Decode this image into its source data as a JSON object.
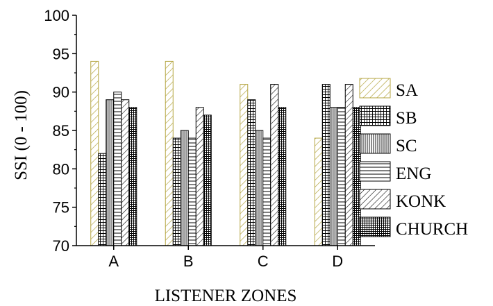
{
  "chart_data": {
    "type": "bar",
    "title": "",
    "xlabel": "LISTENER ZONES",
    "ylabel": "SSI  (0 - 100)",
    "categories": [
      "A",
      "B",
      "C",
      "D"
    ],
    "ylim": [
      70,
      100
    ],
    "yticks": [
      70,
      75,
      80,
      85,
      90,
      95,
      100
    ],
    "grid": false,
    "legend_position": "right",
    "series": [
      {
        "name": "SA",
        "values": [
          94,
          94,
          91,
          84
        ],
        "pattern": "diag-sparse",
        "color": "#b5a642"
      },
      {
        "name": "SB",
        "values": [
          82,
          84,
          89,
          91
        ],
        "pattern": "grid",
        "color": "#000000"
      },
      {
        "name": "SC",
        "values": [
          89,
          85,
          85,
          88
        ],
        "pattern": "vertical",
        "color": "#000000"
      },
      {
        "name": "ENG",
        "values": [
          90,
          84,
          84,
          88
        ],
        "pattern": "horizontal",
        "color": "#000000"
      },
      {
        "name": "KONK",
        "values": [
          89,
          88,
          91,
          91
        ],
        "pattern": "diag",
        "color": "#000000"
      },
      {
        "name": "CHURCH",
        "values": [
          88,
          87,
          88,
          88
        ],
        "pattern": "grid-dense",
        "color": "#000000"
      }
    ]
  }
}
